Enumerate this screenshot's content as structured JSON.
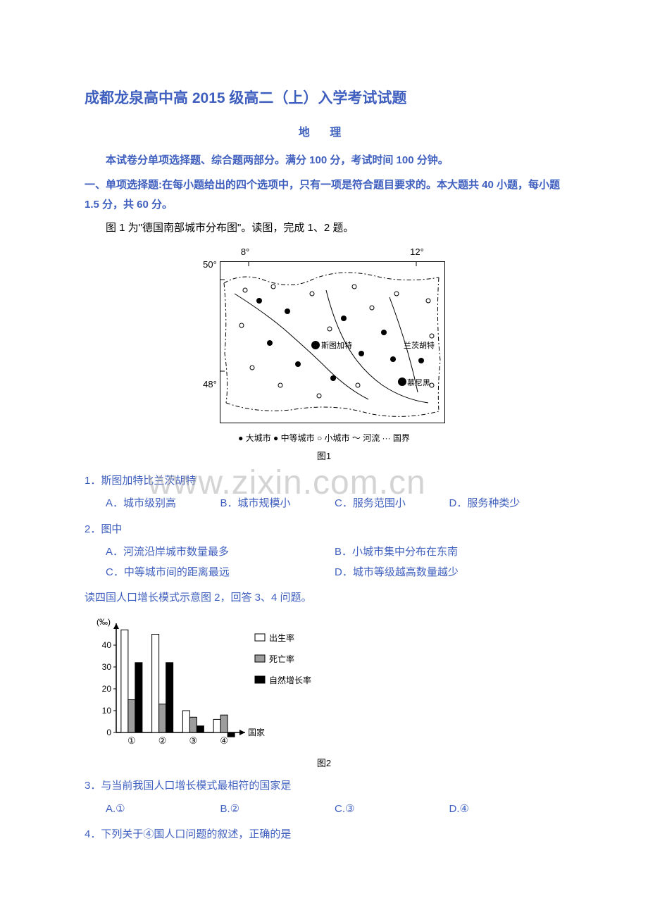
{
  "title_main": "成都龙泉高中高 2015 级高二（上）入学考试试题",
  "subtitle": "地 理",
  "intro": "本试卷分单项选择题、综合题两部分。满分 100 分，考试时间 100 分钟。",
  "section_head": "一、单项选择题:在每小题给出的四个选项中，只有一项是符合题目要求的。本大题共 40 小题，每小题 1.5 分，共 60 分。",
  "fig1_desc": "图 1 为\"德国南部城市分布图\"。读图，完成 1、2 题。",
  "fig1_axis": {
    "x_left": "8°",
    "x_right": "12°",
    "y_top": "50°",
    "y_bot": "48°"
  },
  "fig1_city_labels": {
    "stuttgart": "斯图加特",
    "lanz": "兰茨胡特",
    "munich": "慕尼黑"
  },
  "fig1_legend": "● 大城市 ● 中等城市 ○ 小城市 ～ 河流 ··· 国界",
  "fig1_label": "图1",
  "watermark": "www.zixin.com.cn",
  "q1": "1．斯图加特比兰茨胡特",
  "q1_opts": {
    "a": "A．城市级别高",
    "b": "B．城市规模小",
    "c": "C．服务范围小",
    "d": "D．服务种类少"
  },
  "q2": "2．图中",
  "q2_opts": {
    "a": "A．河流沿岸城市数量最多",
    "b": "B．小城市集中分布在东南",
    "c": "C．中等城市间的距离最远",
    "d": "D．城市等级越高数量越少"
  },
  "reading2": "读四国人口增长模式示意图 2，回答 3、4 问题。",
  "fig2": {
    "ylabel": "(‰)",
    "xlabel": "国家",
    "ticks": [
      0,
      10,
      20,
      30,
      40
    ],
    "categories": [
      "①",
      "②",
      "③",
      "④"
    ],
    "birth": [
      47,
      45,
      10,
      6
    ],
    "death": [
      15,
      13,
      7,
      8
    ],
    "growth": [
      32,
      32,
      3,
      -2
    ],
    "legend": {
      "birth": "出生率",
      "death": "死亡率",
      "growth": "自然增长率"
    },
    "colors": {
      "birth": "#ffffff",
      "death": "#9d9d9d",
      "growth": "#000000",
      "border": "#000000"
    },
    "label": "图2"
  },
  "q3": "3．与当前我国人口增长模式最相符的国家是",
  "q3_opts": {
    "a": "A.①",
    "b": "B.②",
    "c": "C.③",
    "d": "D.④"
  },
  "q4": "4．下列关于④国人口问题的叙述，正确的是"
}
